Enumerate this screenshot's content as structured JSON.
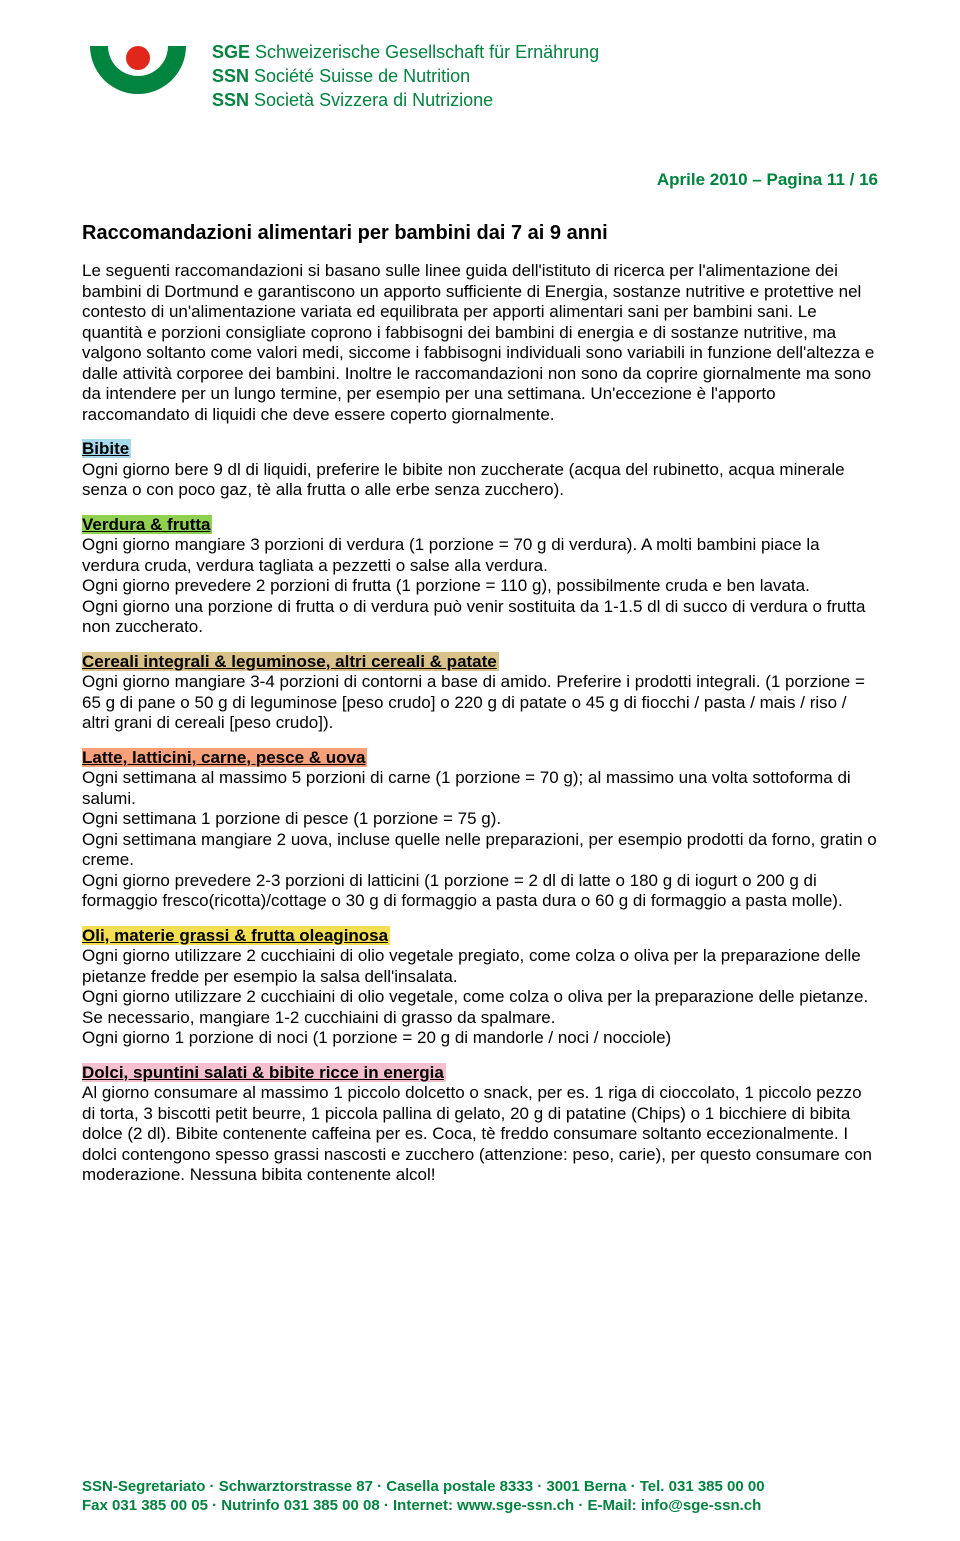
{
  "colors": {
    "green": "#00843e",
    "red": "#e1261c",
    "text": "#000000",
    "bg": "#ffffff",
    "hl_bibite": "#a7d9ed",
    "hl_verdura": "#8fd14f",
    "hl_cereali": "#d9c18a",
    "hl_latte": "#f7a07a",
    "hl_oli": "#f4df50",
    "hl_dolci": "#f4c0cd"
  },
  "org": {
    "line1_abbr": "SGE",
    "line1_name": "Schweizerische Gesellschaft für Ernährung",
    "line2_abbr": "SSN",
    "line2_name": "Société Suisse de Nutrition",
    "line3_abbr": "SSN",
    "line3_name": "Società Svizzera di Nutrizione"
  },
  "date_line": "Aprile 2010 – Pagina 11 / 16",
  "title": "Raccomandazioni alimentari per bambini dai 7 ai 9 anni",
  "intro": "Le seguenti raccomandazioni si basano sulle linee guida dell'istituto di ricerca per l'alimentazione dei bambini di Dortmund e garantiscono un apporto sufficiente di Energia, sostanze nutritive e protettive nel contesto di un'alimentazione variata ed equilibrata per apporti alimentari sani per bambini sani. Le quantità e porzioni consigliate coprono i fabbisogni dei bambini di energia e di sostanze nutritive, ma valgono soltanto come valori medi, siccome i fabbisogni individuali sono variabili in funzione dell'altezza e dalle attività corporee dei bambini. Inoltre le raccomandazioni non sono da coprire giornalmente ma sono da intendere per un lungo termine, per esempio per una settimana. Un'eccezione è l'apporto raccomandato di liquidi che deve essere coperto giornalmente.",
  "sections": [
    {
      "key": "bibite",
      "heading": "Bibite",
      "highlight": "#a7d9ed",
      "body": "Ogni giorno bere 9 dl di liquidi, preferire le bibite non zuccherate (acqua del rubinetto, acqua minerale senza o con poco gaz, tè alla frutta o alle erbe senza zucchero)."
    },
    {
      "key": "verdura",
      "heading": "Verdura & frutta",
      "highlight": "#8fd14f",
      "body": "Ogni giorno mangiare 3 porzioni di verdura (1 porzione = 70 g di verdura). A molti bambini piace la verdura cruda, verdura tagliata a pezzetti o salse alla verdura.\nOgni giorno prevedere 2 porzioni di frutta (1 porzione = 110 g), possibilmente cruda e ben lavata.\nOgni giorno una porzione di frutta o di verdura può venir sostituita da 1-1.5 dl di succo di verdura o frutta non zuccherato."
    },
    {
      "key": "cereali",
      "heading": "Cereali integrali & leguminose, altri cereali & patate",
      "highlight": "#d9c18a",
      "body": "Ogni giorno mangiare 3-4 porzioni di contorni a base di amido. Preferire i prodotti integrali. (1 porzione = 65 g di pane o 50 g di leguminose [peso crudo] o 220 g di patate o 45 g di fiocchi / pasta / mais / riso / altri grani di cereali [peso crudo])."
    },
    {
      "key": "latte",
      "heading": "Latte, latticini, carne, pesce & uova",
      "highlight": "#f7a07a",
      "body": "Ogni settimana al massimo 5 porzioni di carne (1 porzione = 70 g); al massimo una volta sottoforma di salumi.\nOgni settimana 1 porzione di pesce (1 porzione = 75 g).\nOgni settimana mangiare 2 uova, incluse quelle nelle preparazioni, per esempio prodotti da forno, gratin o creme.\nOgni giorno prevedere 2-3 porzioni di latticini (1 porzione = 2 dl di latte o 180 g di iogurt o 200 g di formaggio fresco(ricotta)/cottage o 30 g di formaggio a pasta dura o 60 g di formaggio a pasta molle)."
    },
    {
      "key": "oli",
      "heading": "Oli, materie grassi & frutta oleaginosa",
      "highlight": "#f4df50",
      "body": "Ogni giorno utilizzare 2 cucchiaini di olio vegetale pregiato, come colza o oliva per la preparazione delle pietanze fredde per esempio la salsa dell'insalata.\nOgni giorno utilizzare 2 cucchiaini di olio vegetale, come colza o oliva per la preparazione delle pietanze.\nSe necessario, mangiare 1-2 cucchiaini di grasso da spalmare.\nOgni giorno 1 porzione di noci (1 porzione = 20 g di mandorle / noci / nocciole)"
    },
    {
      "key": "dolci",
      "heading": "Dolci, spuntini salati & bibite ricce in energia",
      "highlight": "#f4c0cd",
      "body": "Al giorno consumare al massimo 1 piccolo dolcetto o snack, per es. 1 riga di cioccolato, 1 piccolo pezzo di torta, 3 biscotti petit beurre, 1 piccola pallina di gelato, 20 g di patatine (Chips) o 1 bicchiere di bibita dolce (2 dl). Bibite contenente caffeina per es. Coca, tè freddo consumare soltanto eccezionalmente. I dolci contengono spesso grassi nascosti e zucchero (attenzione: peso, carie), per questo consumare con moderazione. Nessuna bibita contenente alcol!"
    }
  ],
  "footer": {
    "line1": "SSN-Segretariato · Schwarztorstrasse 87 · Casella postale 8333 · 3001 Berna · Tel. 031 385 00 00",
    "line2": "Fax 031 385 00 05 · Nutrinfo 031 385 00 08 · Internet: www.sge-ssn.ch · E-Mail: info@sge-ssn.ch"
  }
}
